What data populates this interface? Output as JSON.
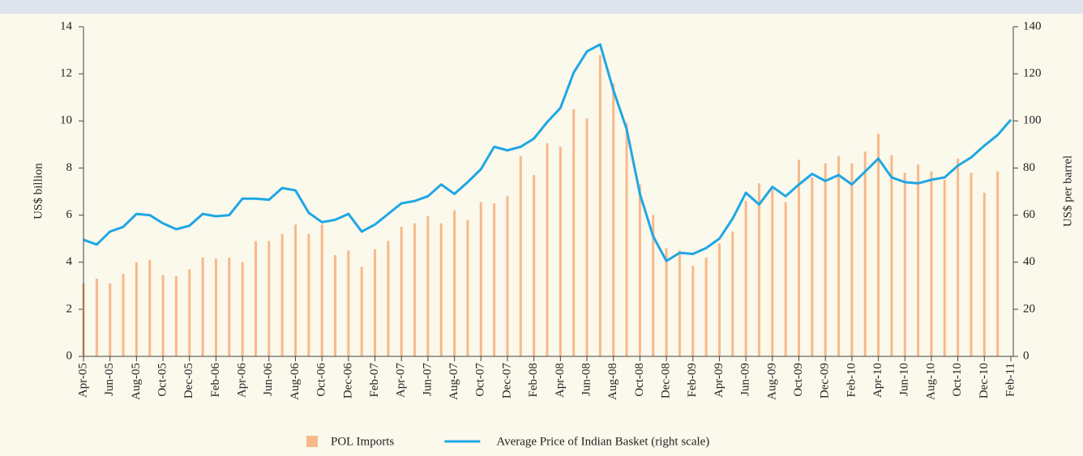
{
  "chart_data": {
    "type": "bar-line",
    "categories": [
      "Apr-05",
      null,
      "Jun-05",
      null,
      "Aug-05",
      null,
      "Oct-05",
      null,
      "Dec-05",
      null,
      "Feb-06",
      null,
      "Apr-06",
      null,
      "Jun-06",
      null,
      "Aug-06",
      null,
      "Oct-06",
      null,
      "Dec-06",
      null,
      "Feb-07",
      null,
      "Apr-07",
      null,
      "Jun-07",
      null,
      "Aug-07",
      null,
      "Oct-07",
      null,
      "Dec-07",
      null,
      "Feb-08",
      null,
      "Apr-08",
      null,
      "Jun-08",
      null,
      "Aug-08",
      null,
      "Oct-08",
      null,
      "Dec-08",
      null,
      "Feb-09",
      null,
      "Apr-09",
      null,
      "Jun-09",
      null,
      "Aug-09",
      null,
      "Oct-09",
      null,
      "Dec-09",
      null,
      "Feb-10",
      null,
      "Apr-10",
      null,
      "Jun-10",
      null,
      "Aug-10",
      null,
      "Oct-10",
      null,
      "Dec-10",
      null,
      "Feb-11"
    ],
    "series": [
      {
        "name": "POL Imports",
        "type": "bar",
        "color": "#f7b98a",
        "values": [
          3.1,
          3.3,
          3.1,
          3.5,
          4.0,
          4.1,
          3.45,
          3.4,
          3.7,
          4.2,
          4.15,
          4.2,
          4.0,
          4.9,
          4.9,
          5.2,
          5.6,
          5.2,
          5.6,
          4.3,
          4.5,
          3.8,
          4.55,
          4.9,
          5.5,
          5.65,
          5.95,
          5.65,
          6.2,
          5.8,
          6.55,
          6.5,
          6.8,
          8.5,
          7.7,
          9.05,
          8.9,
          10.5,
          10.1,
          12.8,
          11.6,
          9.9,
          7.3,
          6.0,
          4.6,
          4.5,
          3.85,
          4.2,
          4.8,
          5.3,
          6.6,
          7.35,
          7.1,
          6.55,
          8.35,
          7.6,
          8.2,
          8.5,
          8.2,
          8.7,
          9.45,
          8.55,
          7.8,
          8.15,
          7.85,
          7.5,
          8.4,
          7.8,
          6.95,
          7.85,
          null
        ]
      },
      {
        "name": "Average Price of Indian Basket (right scale)",
        "type": "line",
        "axis": "y2",
        "color": "#1ea7e4",
        "values": [
          49.5,
          47.5,
          53,
          55,
          60.5,
          60,
          56.5,
          54,
          55.5,
          60.5,
          59.5,
          60,
          67,
          67,
          66.5,
          71.5,
          70.5,
          61,
          57,
          58,
          60.5,
          53,
          56,
          60.5,
          65,
          66,
          68,
          73,
          69,
          74,
          79.5,
          89,
          87.5,
          89,
          92.5,
          99.5,
          105.5,
          120.5,
          129.5,
          132.5,
          113,
          96.5,
          69,
          51,
          40.5,
          44,
          43.5,
          46,
          50,
          58.5,
          69.5,
          64.5,
          72,
          68,
          73,
          77.5,
          74.5,
          77,
          73,
          78.5,
          84,
          76,
          74,
          73.5,
          75,
          76,
          81,
          84.5,
          89.5,
          94,
          100.5
        ]
      }
    ],
    "ylabel": "US$ billion",
    "y2label": "US$ per barrel",
    "ylim": [
      0,
      14
    ],
    "yticks": [
      0,
      2,
      4,
      6,
      8,
      10,
      12,
      14
    ],
    "y2lim": [
      0,
      140
    ],
    "y2ticks": [
      0,
      20,
      40,
      60,
      80,
      100,
      120,
      140
    ],
    "legend": "bottom"
  }
}
